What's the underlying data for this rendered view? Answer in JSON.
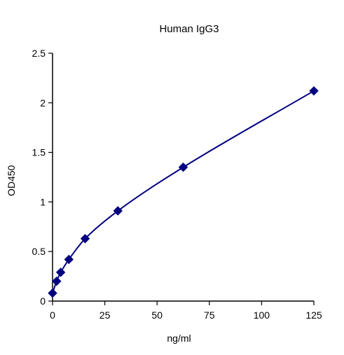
{
  "chart_data": {
    "type": "scatter",
    "title": "Human IgG3",
    "xlabel": "ng/ml",
    "ylabel": "OD450",
    "xlim": [
      0,
      125
    ],
    "ylim": [
      0,
      2.5
    ],
    "x_ticks": [
      {
        "value": 0,
        "label": "0"
      },
      {
        "value": 25,
        "label": "25"
      },
      {
        "value": 50,
        "label": "50"
      },
      {
        "value": 75,
        "label": "75"
      },
      {
        "value": 100,
        "label": "100"
      },
      {
        "value": 125,
        "label": "125"
      }
    ],
    "y_ticks": [
      {
        "value": 0,
        "label": "0"
      },
      {
        "value": 0.5,
        "label": "0.5"
      },
      {
        "value": 1,
        "label": "1"
      },
      {
        "value": 1.5,
        "label": "1.5"
      },
      {
        "value": 2,
        "label": "2"
      },
      {
        "value": 2.5,
        "label": "2.5"
      }
    ],
    "grid": false,
    "legend": "none",
    "series": [
      {
        "color": "#000080",
        "marker": "diamond",
        "fit_line": "smooth",
        "points": [
          {
            "x": 0,
            "y": 0.08
          },
          {
            "x": 1.95,
            "y": 0.2
          },
          {
            "x": 3.9,
            "y": 0.29
          },
          {
            "x": 7.8,
            "y": 0.42
          },
          {
            "x": 15.6,
            "y": 0.63
          },
          {
            "x": 31.25,
            "y": 0.91
          },
          {
            "x": 62.5,
            "y": 1.35
          },
          {
            "x": 125,
            "y": 2.12
          }
        ]
      }
    ]
  }
}
